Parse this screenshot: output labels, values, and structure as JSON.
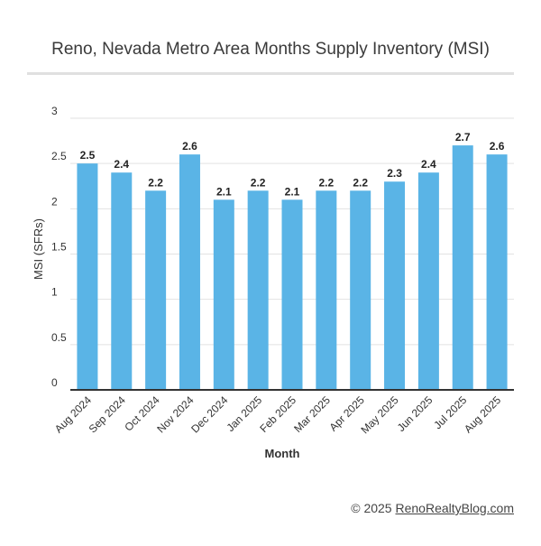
{
  "chart_data": {
    "type": "bar",
    "title": "Reno, Nevada Metro Area Months Supply Inventory (MSI)",
    "xlabel": "Month",
    "ylabel": "MSI (SFRs)",
    "categories": [
      "Aug 2024",
      "Sep 2024",
      "Oct 2024",
      "Nov 2024",
      "Dec 2024",
      "Jan 2025",
      "Feb 2025",
      "Mar 2025",
      "Apr 2025",
      "May 2025",
      "Jun 2025",
      "Jul 2025",
      "Aug 2025"
    ],
    "values": [
      2.5,
      2.4,
      2.2,
      2.6,
      2.1,
      2.2,
      2.1,
      2.2,
      2.2,
      2.3,
      2.4,
      2.7,
      2.6
    ],
    "data_labels": [
      "2.5",
      "2.4",
      "2.2",
      "2.6",
      "2.1",
      "2.2",
      "2.1",
      "2.2",
      "2.2",
      "2.3",
      "2.4",
      "2.7",
      "2.6"
    ],
    "ylim": [
      0,
      3
    ],
    "yticks": [
      "0",
      "0.5",
      "1",
      "1.5",
      "2",
      "2.5",
      "3"
    ],
    "grid": true,
    "legend": "none",
    "bar_color": "#5ab4e6"
  },
  "footer": {
    "prefix": "© 2025",
    "link_text": "RenoRealtyBlog.com"
  }
}
